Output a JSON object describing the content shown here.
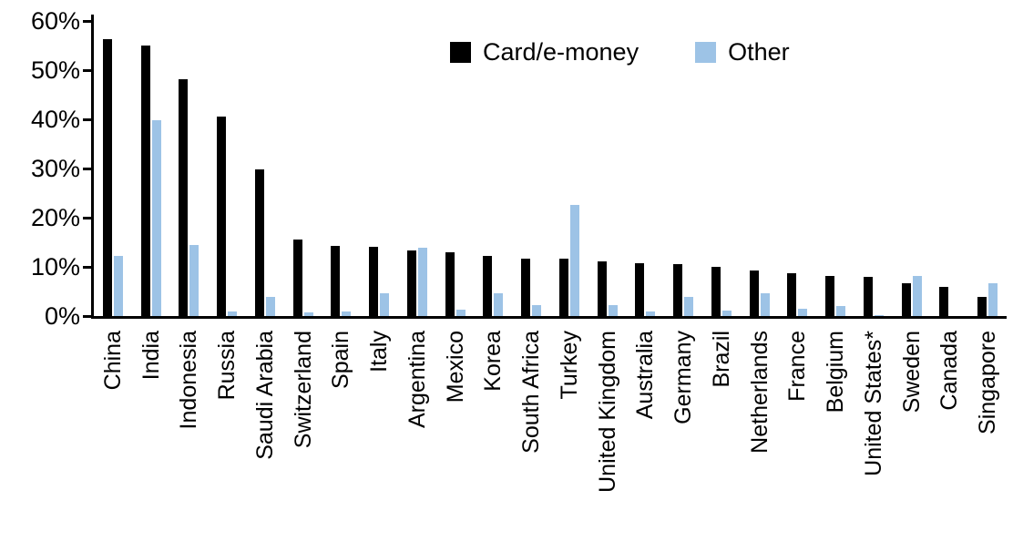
{
  "chart_data": {
    "type": "bar",
    "title": "",
    "categories": [
      "China",
      "India",
      "Indonesia",
      "Russia",
      "Saudi Arabia",
      "Switzerland",
      "Spain",
      "Italy",
      "Argentina",
      "Mexico",
      "Korea",
      "South Africa",
      "Turkey",
      "United Kingdom",
      "Australia",
      "Germany",
      "Brazil",
      "Netherlands",
      "France",
      "Belgium",
      "United States*",
      "Sweden",
      "Canada",
      "Singapore"
    ],
    "series": [
      {
        "name": "Card/e-money",
        "color": "#000000",
        "values": [
          56.3,
          55.0,
          48.2,
          40.5,
          29.8,
          15.6,
          14.2,
          14.1,
          13.4,
          13.0,
          12.2,
          11.7,
          11.6,
          11.1,
          10.7,
          10.5,
          10.0,
          9.2,
          8.7,
          8.1,
          7.9,
          6.6,
          6.0,
          3.9
        ]
      },
      {
        "name": "Other",
        "color": "#9DC3E6",
        "values": [
          12.3,
          39.8,
          14.4,
          1.0,
          3.9,
          0.8,
          1.0,
          4.6,
          13.8,
          1.3,
          4.7,
          2.3,
          22.6,
          2.3,
          1.0,
          3.9,
          1.2,
          4.7,
          1.5,
          2.0,
          0.2,
          8.2,
          0.0,
          6.7
        ]
      }
    ],
    "xlabel": "",
    "ylabel": "",
    "ylim": [
      0,
      60
    ],
    "ytick_step": 10,
    "ytick_labels": [
      "0%",
      "10%",
      "20%",
      "30%",
      "40%",
      "50%",
      "60%"
    ],
    "grid": false,
    "legend_position": "top-center-inside"
  }
}
